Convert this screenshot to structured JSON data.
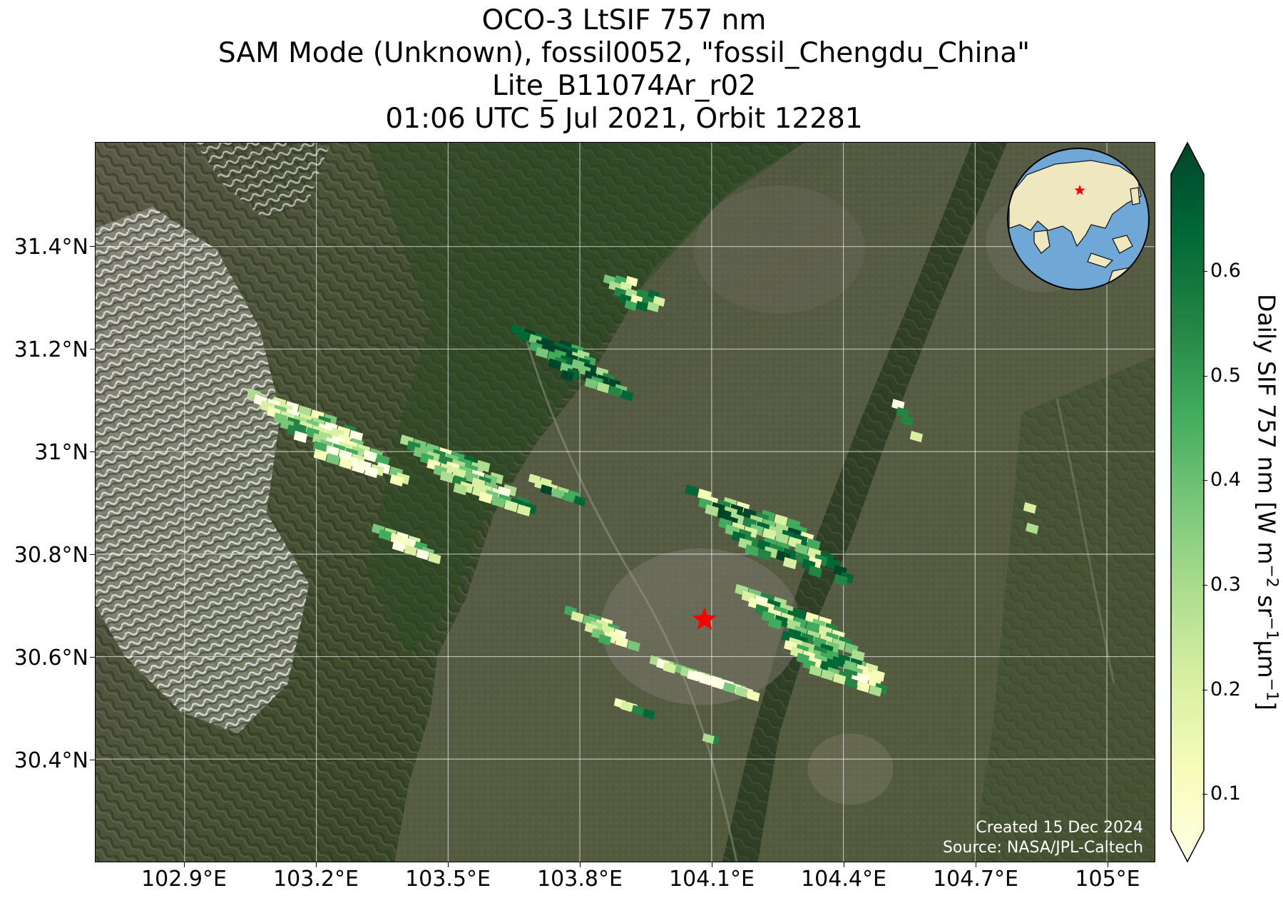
{
  "title": {
    "line1": "OCO-3 LtSIF 757 nm",
    "line2": "SAM Mode (Unknown), fossil0052, \"fossil_Chengdu_China\"",
    "line3": "Lite_B11074Ar_r02",
    "line4": "01:06 UTC 5 Jul 2021, Orbit 12281"
  },
  "axes": {
    "lon_ticks": [
      "102.9°E",
      "103.2°E",
      "103.5°E",
      "103.8°E",
      "104.1°E",
      "104.4°E",
      "104.7°E",
      "105°E"
    ],
    "lat_ticks": [
      "31.4°N",
      "31.2°N",
      "31°N",
      "30.8°N",
      "30.6°N",
      "30.4°N"
    ]
  },
  "colorbar": {
    "label_main": "Daily SIF 757 nm [W m",
    "label_exp1": "−2",
    "label_mid": " sr",
    "label_exp2": "−1",
    "label_mid2": "μm",
    "label_exp3": "−1",
    "label_end": "]",
    "ticks": [
      "0.1",
      "0.2",
      "0.3",
      "0.4",
      "0.5",
      "0.6"
    ],
    "colors": [
      "#ffffe5",
      "#f7fcb9",
      "#d9f0a3",
      "#addd8e",
      "#78c679",
      "#41ab5d",
      "#238443",
      "#006837",
      "#004529"
    ]
  },
  "credits": {
    "created": "Created 15 Dec 2024",
    "source": "Source: NASA/JPL-Caltech"
  },
  "marker": {
    "name": "Chengdu target",
    "color": "#ff0000"
  },
  "inset_globe": {
    "ocean_color": "#6fa8d6",
    "land_color": "#efe7c0",
    "marker_color": "#ff0000"
  }
}
